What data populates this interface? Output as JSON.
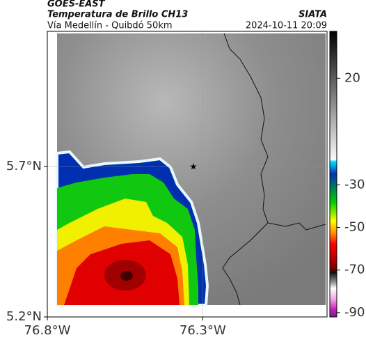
{
  "header": {
    "agency": "GOES-EAST",
    "title": "Temperatura de Brillo CH13",
    "subtitle": "Vía Medellín - Quibdó 50km",
    "source": "SIATA",
    "datetime": "2024-10-11 20:09"
  },
  "map": {
    "lonlim": [
      -76.8,
      -75.9
    ],
    "latlim": [
      5.2,
      6.15
    ],
    "lonticks": [
      {
        "value": -76.8,
        "label": "76.8°W"
      },
      {
        "value": -76.3,
        "label": "76.3°W"
      }
    ],
    "latticks": [
      {
        "value": 5.2,
        "label": "5.2°N"
      },
      {
        "value": 5.7,
        "label": "5.7°N"
      }
    ],
    "marker": {
      "lon": -76.33,
      "lat": 5.7
    }
  },
  "colorbar": {
    "clim": [
      -92,
      42
    ],
    "ticks": [
      20,
      -30,
      -50,
      -70,
      -90
    ]
  }
}
